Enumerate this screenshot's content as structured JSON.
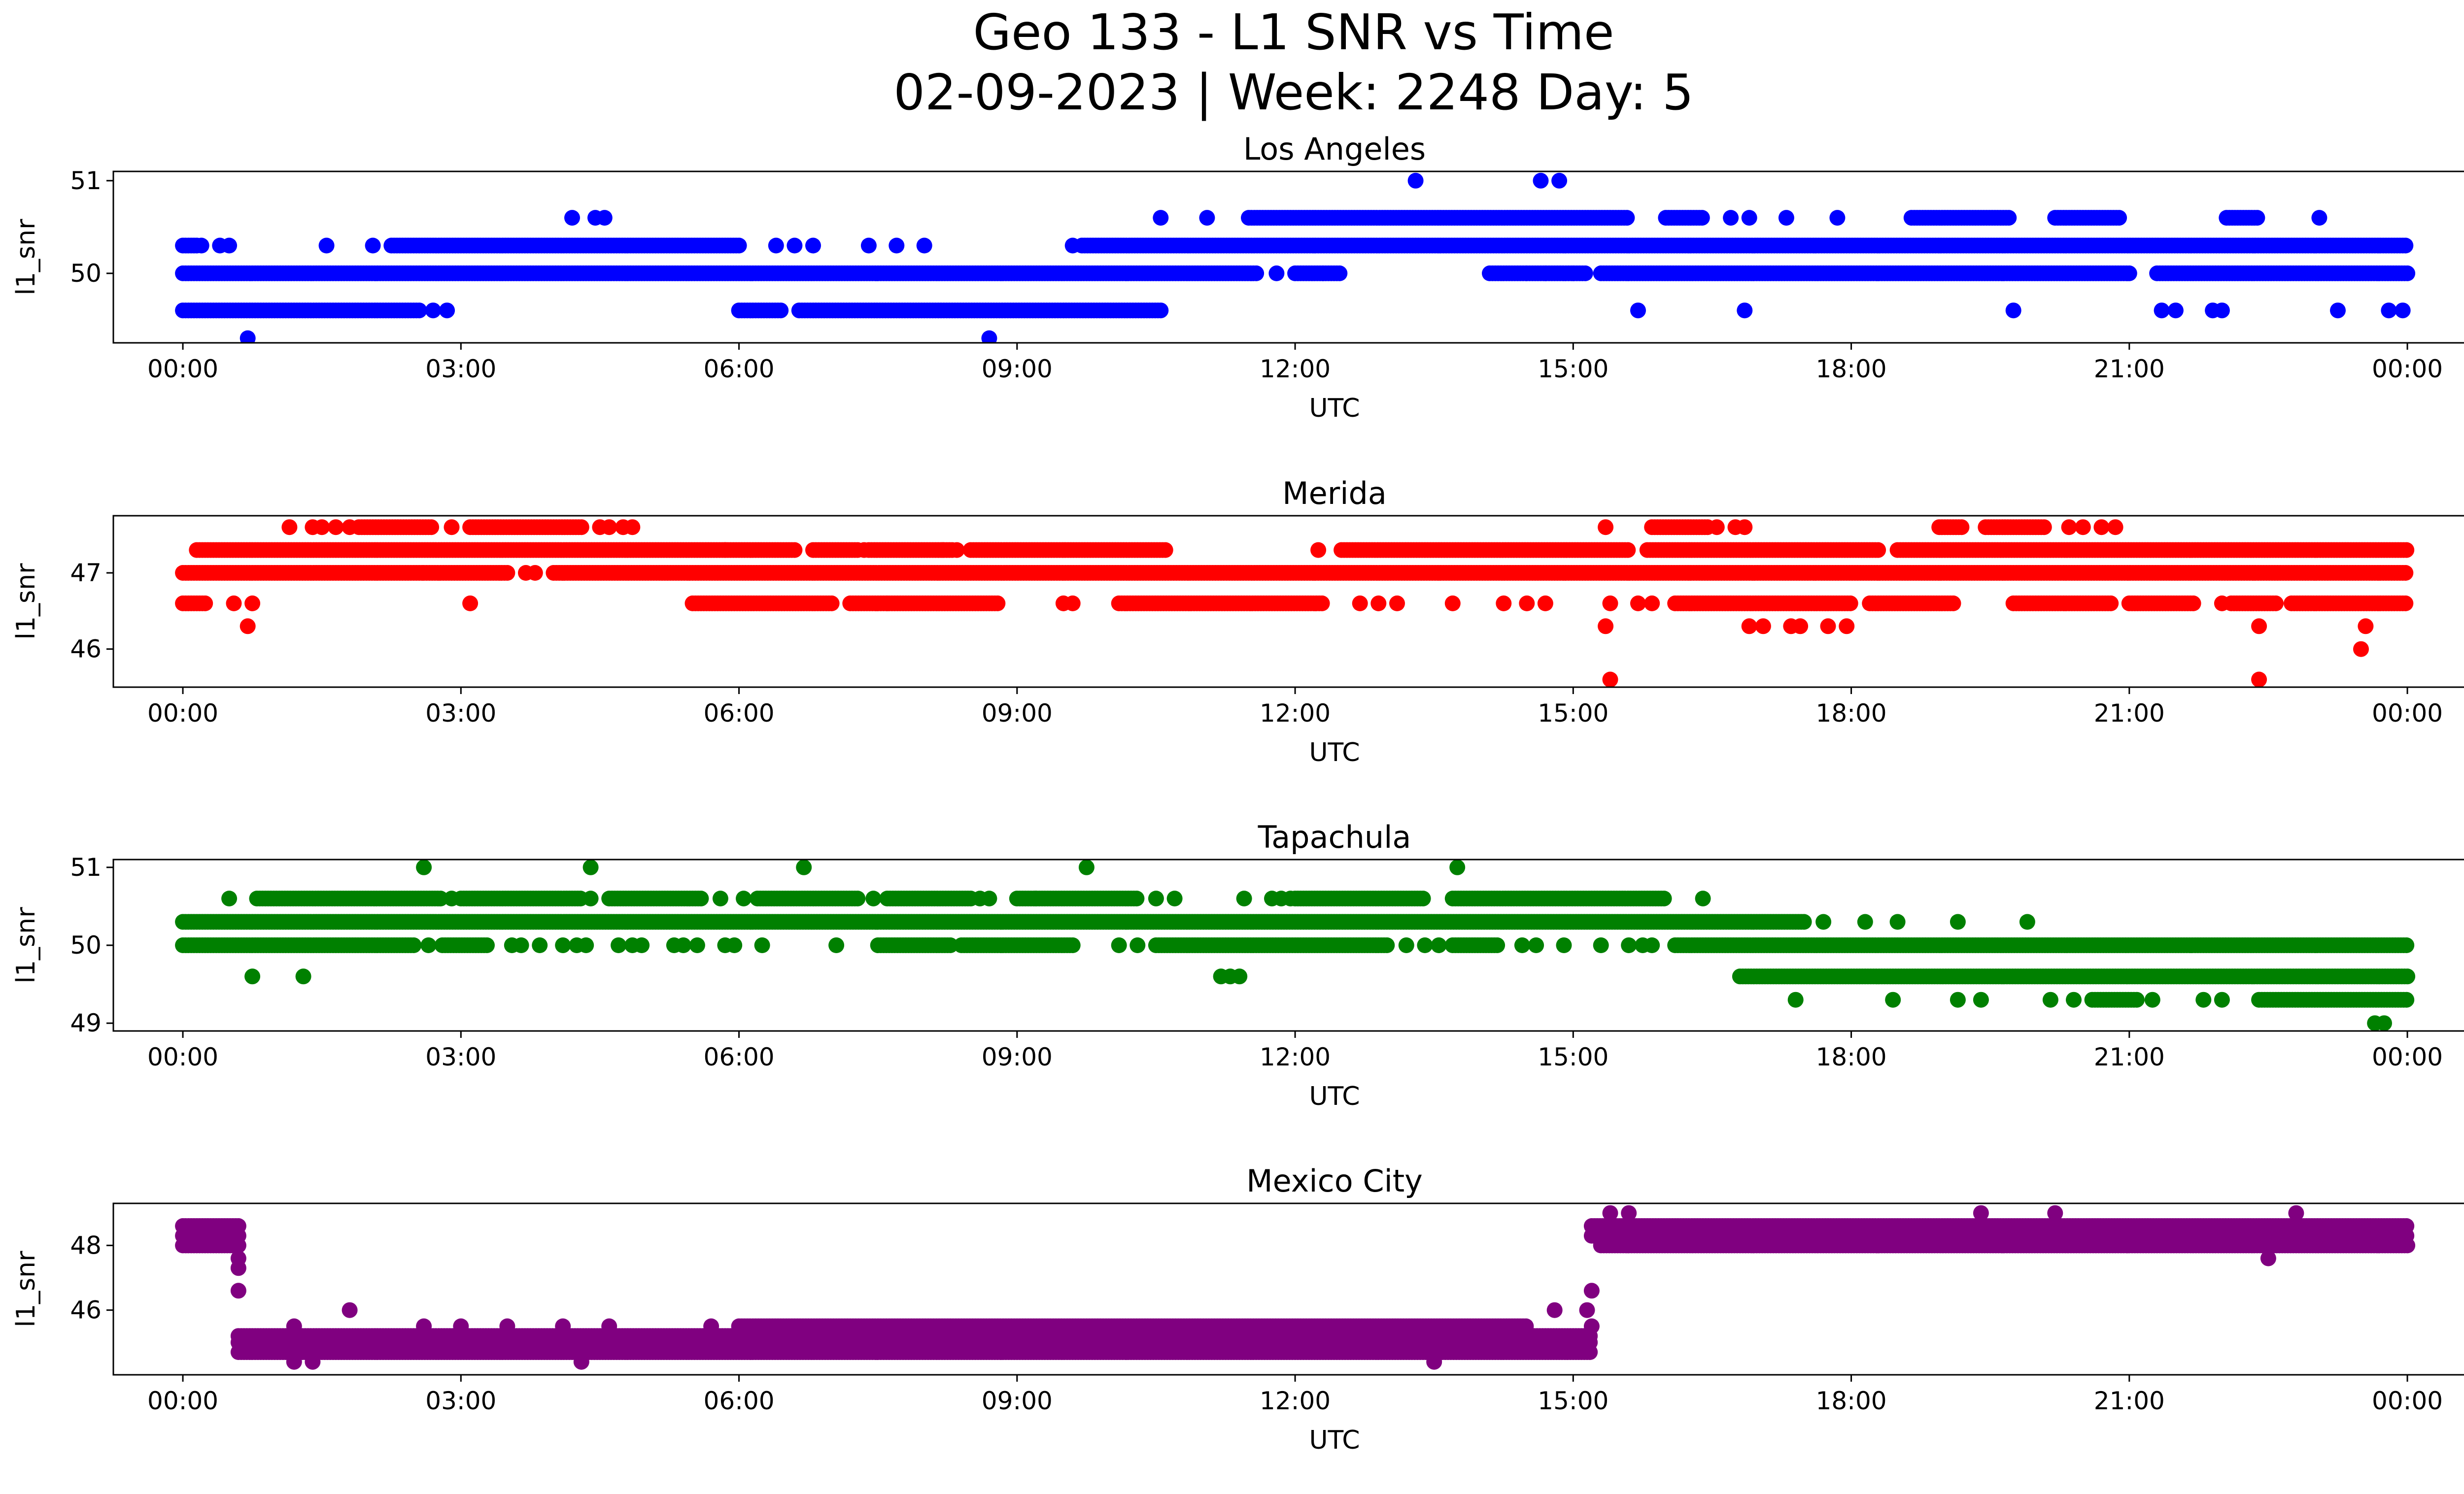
{
  "figure": {
    "title_line1": "Geo 133 - L1 SNR vs Time",
    "title_line2": "02-09-2023 | Week: 2248 Day: 5"
  },
  "chart_data": [
    {
      "type": "scatter",
      "title": "Los Angeles",
      "xlabel": "UTC",
      "ylabel": "l1_snr",
      "color": "#0000ff",
      "x_range_hours": [
        -0.75,
        25.6
      ],
      "xtick_labels": [
        "00:00",
        "03:00",
        "06:00",
        "09:00",
        "12:00",
        "15:00",
        "18:00",
        "21:00",
        "00:00"
      ],
      "ylim": [
        49.25,
        51.1
      ],
      "yticks": [
        50,
        51
      ],
      "levels": [
        {
          "y": 49.3,
          "ranges": [],
          "points": [
            0.7,
            8.7
          ]
        },
        {
          "y": 49.6,
          "ranges": [
            [
              0.0,
              2.55
            ],
            [
              6.0,
              6.45
            ],
            [
              6.65,
              10.55
            ]
          ],
          "points": [
            2.7,
            2.85,
            15.7,
            16.85,
            19.75,
            21.35,
            21.5,
            21.9,
            22.0,
            23.25,
            23.8,
            23.95
          ]
        },
        {
          "y": 50.0,
          "ranges": [
            [
              0.0,
              11.6
            ],
            [
              12.0,
              12.5
            ],
            [
              14.1,
              14.5
            ],
            [
              14.5,
              15.15
            ],
            [
              15.3,
              21.0
            ],
            [
              21.3,
              24.0
            ]
          ],
          "points": [
            11.8,
            12.3,
            14.7,
            15.0
          ]
        },
        {
          "y": 50.3,
          "ranges": [
            [
              0.0,
              0.15
            ],
            [
              2.25,
              6.0
            ],
            [
              9.7,
              24.0
            ]
          ],
          "points": [
            0.2,
            0.4,
            0.5,
            1.55,
            2.05,
            6.4,
            6.6,
            6.8,
            7.4,
            7.7,
            8.0,
            9.6
          ]
        },
        {
          "y": 50.6,
          "ranges": [
            [
              11.5,
              15.6
            ],
            [
              16.0,
              16.4
            ],
            [
              18.65,
              19.7
            ],
            [
              20.2,
              20.9
            ],
            [
              22.05,
              22.4
            ]
          ],
          "points": [
            4.2,
            4.45,
            4.55,
            10.55,
            11.05,
            16.7,
            16.9,
            17.3,
            17.85,
            23.05
          ]
        },
        {
          "y": 51.0,
          "ranges": [],
          "points": [
            13.3,
            14.65,
            14.85
          ]
        }
      ]
    },
    {
      "type": "scatter",
      "title": "Merida",
      "xlabel": "UTC",
      "ylabel": "l1_snr",
      "color": "#ff0000",
      "x_range_hours": [
        -0.75,
        25.6
      ],
      "xtick_labels": [
        "00:00",
        "03:00",
        "06:00",
        "09:00",
        "12:00",
        "15:00",
        "18:00",
        "21:00",
        "00:00"
      ],
      "ylim": [
        45.5,
        47.75
      ],
      "yticks": [
        46,
        47
      ],
      "levels": [
        {
          "y": 45.6,
          "ranges": [],
          "points": [
            15.4,
            22.4
          ]
        },
        {
          "y": 46.0,
          "ranges": [],
          "points": [
            23.5
          ]
        },
        {
          "y": 46.3,
          "ranges": [],
          "points": [
            0.7,
            15.35,
            16.9,
            17.05,
            17.35,
            17.45,
            17.75,
            17.95,
            22.4,
            23.55
          ]
        },
        {
          "y": 46.6,
          "ranges": [
            [
              0.0,
              0.25
            ],
            [
              5.5,
              7.0
            ],
            [
              7.2,
              8.8
            ],
            [
              10.1,
              12.3
            ],
            [
              16.1,
              18.0
            ],
            [
              18.2,
              19.1
            ],
            [
              19.75,
              20.8
            ],
            [
              21.0,
              21.7
            ],
            [
              22.1,
              22.6
            ],
            [
              22.75,
              24.0
            ]
          ],
          "points": [
            0.55,
            0.75,
            3.1,
            7.6,
            9.5,
            9.6,
            12.7,
            12.9,
            13.1,
            13.7,
            14.25,
            14.5,
            14.7,
            15.4,
            15.7,
            15.85,
            22.0
          ]
        },
        {
          "y": 47.0,
          "ranges": [
            [
              0.0,
              2.6
            ],
            [
              2.6,
              3.5
            ],
            [
              4.0,
              24.0
            ]
          ],
          "points": [
            3.8,
            3.7
          ]
        },
        {
          "y": 47.3,
          "ranges": [
            [
              0.15,
              5.85
            ],
            [
              5.85,
              6.6
            ],
            [
              6.8,
              7.3
            ],
            [
              7.4,
              8.3
            ],
            [
              8.5,
              10.6
            ],
            [
              12.5,
              15.6
            ],
            [
              15.8,
              18.3
            ],
            [
              18.5,
              24.0
            ]
          ],
          "points": [
            7.35,
            8.2,
            8.35,
            12.25
          ]
        },
        {
          "y": 47.6,
          "ranges": [
            [
              1.9,
              2.7
            ],
            [
              3.1,
              4.3
            ],
            [
              15.85,
              16.45
            ],
            [
              19.45,
              20.1
            ],
            [
              18.95,
              19.2
            ]
          ],
          "points": [
            1.15,
            1.4,
            1.5,
            1.65,
            1.8,
            2.9,
            4.5,
            4.6,
            4.75,
            4.85,
            15.35,
            16.55,
            16.75,
            16.85,
            20.35,
            20.5,
            20.7,
            20.85
          ]
        }
      ]
    },
    {
      "type": "scatter",
      "title": "Tapachula",
      "xlabel": "UTC",
      "ylabel": "l1_snr",
      "color": "#008000",
      "x_range_hours": [
        -0.75,
        25.6
      ],
      "xtick_labels": [
        "00:00",
        "03:00",
        "06:00",
        "09:00",
        "12:00",
        "15:00",
        "18:00",
        "21:00",
        "00:00"
      ],
      "ylim": [
        48.9,
        51.1
      ],
      "yticks": [
        49,
        50,
        51
      ],
      "levels": [
        {
          "y": 49.0,
          "ranges": [],
          "points": [
            23.65,
            23.75
          ]
        },
        {
          "y": 49.3,
          "ranges": [
            [
              20.6,
              21.1
            ],
            [
              22.4,
              24.0
            ]
          ],
          "points": [
            17.4,
            18.45,
            19.15,
            19.4,
            20.15,
            20.4,
            21.25,
            21.8,
            22.0
          ]
        },
        {
          "y": 49.6,
          "ranges": [
            [
              16.8,
              24.0
            ]
          ],
          "points": [
            0.75,
            1.3,
            11.2,
            11.3,
            11.4
          ]
        },
        {
          "y": 50.0,
          "ranges": [
            [
              0.0,
              2.5
            ],
            [
              2.8,
              3.3
            ],
            [
              7.5,
              8.3
            ],
            [
              8.4,
              9.6
            ],
            [
              10.5,
              13.0
            ],
            [
              13.7,
              14.2
            ],
            [
              16.1,
              24.0
            ]
          ],
          "points": [
            2.65,
            3.55,
            3.65,
            3.85,
            4.1,
            4.25,
            4.35,
            4.7,
            4.85,
            4.95,
            5.3,
            5.4,
            5.55,
            5.85,
            5.95,
            6.25,
            7.05,
            10.1,
            10.3,
            13.2,
            13.4,
            13.55,
            14.45,
            14.6,
            14.9,
            15.3,
            15.6,
            15.75,
            15.85
          ]
        },
        {
          "y": 50.3,
          "ranges": [
            [
              0.0,
              17.5
            ]
          ],
          "points": [
            17.7,
            18.15,
            18.5,
            19.15,
            19.9
          ]
        },
        {
          "y": 50.6,
          "ranges": [
            [
              0.8,
              2.8
            ],
            [
              3.0,
              4.3
            ],
            [
              4.6,
              5.6
            ],
            [
              6.2,
              7.3
            ],
            [
              7.6,
              8.5
            ],
            [
              9.0,
              10.3
            ],
            [
              12.0,
              13.4
            ],
            [
              13.7,
              16.0
            ]
          ],
          "points": [
            0.5,
            2.9,
            4.4,
            5.8,
            6.05,
            7.45,
            8.6,
            8.7,
            9.2,
            10.5,
            10.7,
            11.45,
            11.75,
            11.85,
            11.95,
            16.4
          ]
        },
        {
          "y": 51.0,
          "ranges": [],
          "points": [
            2.6,
            4.4,
            6.7,
            9.75,
            13.75
          ]
        }
      ]
    },
    {
      "type": "scatter",
      "title": "Mexico City",
      "xlabel": "UTC",
      "ylabel": "l1_snr",
      "color": "#800080",
      "x_range_hours": [
        -0.75,
        25.6
      ],
      "xtick_labels": [
        "00:00",
        "03:00",
        "06:00",
        "09:00",
        "12:00",
        "15:00",
        "18:00",
        "21:00",
        "00:00"
      ],
      "ylim": [
        44.0,
        49.3
      ],
      "yticks": [
        46,
        48
      ],
      "levels": [
        {
          "y": 44.4,
          "ranges": [],
          "points": [
            1.2,
            1.4,
            4.3,
            13.5
          ]
        },
        {
          "y": 44.7,
          "ranges": [
            [
              0.6,
              15.2
            ]
          ],
          "points": []
        },
        {
          "y": 45.0,
          "ranges": [
            [
              0.6,
              15.2
            ]
          ],
          "points": []
        },
        {
          "y": 45.2,
          "ranges": [
            [
              0.6,
              15.2
            ]
          ],
          "points": []
        },
        {
          "y": 45.5,
          "ranges": [
            [
              6.0,
              14.5
            ]
          ],
          "points": [
            1.2,
            2.6,
            3.0,
            3.5,
            4.1,
            4.6,
            5.7,
            15.2
          ]
        },
        {
          "y": 46.0,
          "ranges": [],
          "points": [
            1.8,
            14.8,
            15.15
          ]
        },
        {
          "y": 46.6,
          "ranges": [],
          "points": [
            0.6,
            15.2
          ]
        },
        {
          "y": 47.3,
          "ranges": [],
          "points": [
            0.6
          ]
        },
        {
          "y": 47.6,
          "ranges": [],
          "points": [
            0.6,
            22.5
          ]
        },
        {
          "y": 48.0,
          "ranges": [
            [
              0.0,
              0.6
            ],
            [
              15.3,
              24.0
            ]
          ],
          "points": []
        },
        {
          "y": 48.3,
          "ranges": [
            [
              0.0,
              0.6
            ],
            [
              15.2,
              24.0
            ]
          ],
          "points": []
        },
        {
          "y": 48.6,
          "ranges": [
            [
              0.0,
              0.6
            ],
            [
              15.2,
              24.0
            ]
          ],
          "points": []
        },
        {
          "y": 49.0,
          "ranges": [],
          "points": [
            15.4,
            15.6,
            19.4,
            20.2,
            22.8
          ]
        }
      ]
    }
  ]
}
